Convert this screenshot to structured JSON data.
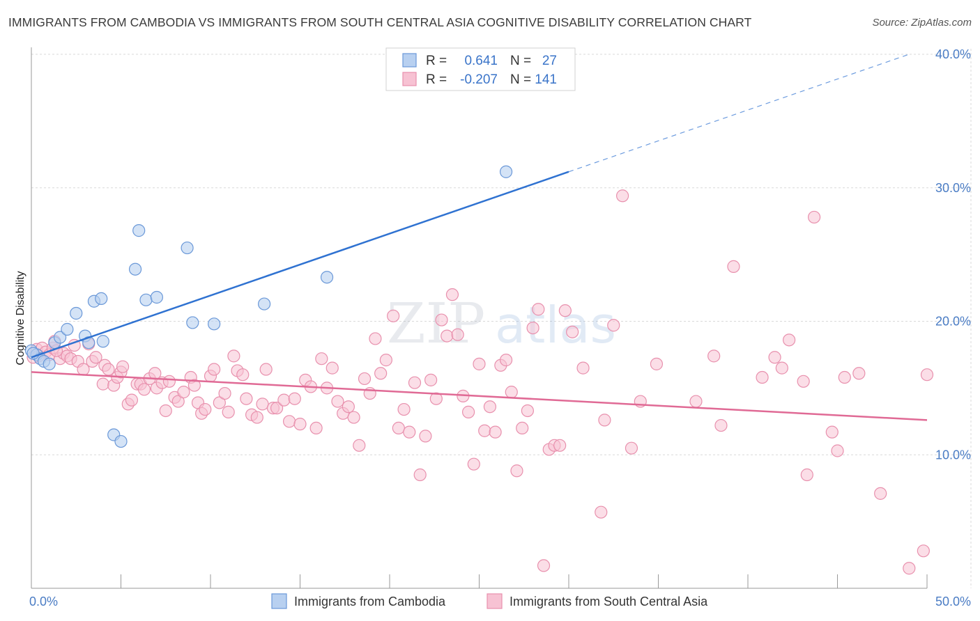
{
  "title": "IMMIGRANTS FROM CAMBODIA VS IMMIGRANTS FROM SOUTH CENTRAL ASIA COGNITIVE DISABILITY CORRELATION CHART",
  "source": "Source: ZipAtlas.com",
  "watermark": {
    "zip": "ZIP",
    "atlas": "atlas"
  },
  "colors": {
    "cambodia_fill": "#b8d0f0",
    "cambodia_stroke": "#6a98d8",
    "cambodia_line": "#2f72d1",
    "sca_fill": "#f7c2d3",
    "sca_stroke": "#e890ad",
    "sca_line": "#e06a95",
    "grid": "#d9d9d9",
    "axis_label": "#4a7cc4"
  },
  "stats_legend": {
    "rows": [
      {
        "r_label": "R =",
        "r_value": "0.641",
        "n_label": "N =",
        "n_value": "27"
      },
      {
        "r_label": "R =",
        "r_value": "-0.207",
        "n_label": "N =",
        "n_value": "141"
      }
    ]
  },
  "chart_data": {
    "type": "scatter",
    "ylabel": "Cognitive Disability",
    "xlim": [
      0,
      50
    ],
    "ylim": [
      0,
      40
    ],
    "x_tick_labels": [
      "0.0%",
      "50.0%"
    ],
    "y_ticks": [
      10,
      20,
      30,
      40
    ],
    "y_tick_labels": [
      "10.0%",
      "20.0%",
      "30.0%",
      "40.0%"
    ],
    "grid": true,
    "legend_position": "bottom",
    "series": [
      {
        "name": "Immigrants from Cambodia",
        "points": [
          [
            0.0,
            17.8
          ],
          [
            0.3,
            17.5
          ],
          [
            0.5,
            17.2
          ],
          [
            0.7,
            17.0
          ],
          [
            1.0,
            16.8
          ],
          [
            1.3,
            18.4
          ],
          [
            1.6,
            18.8
          ],
          [
            2.0,
            19.4
          ],
          [
            2.5,
            20.6
          ],
          [
            3.0,
            18.9
          ],
          [
            3.2,
            18.4
          ],
          [
            3.5,
            21.5
          ],
          [
            3.9,
            21.7
          ],
          [
            4.0,
            18.5
          ],
          [
            4.6,
            11.5
          ],
          [
            5.0,
            11.0
          ],
          [
            5.8,
            23.9
          ],
          [
            6.0,
            26.8
          ],
          [
            6.4,
            21.6
          ],
          [
            7.0,
            21.8
          ],
          [
            8.7,
            25.5
          ],
          [
            9.0,
            19.9
          ],
          [
            10.2,
            19.8
          ],
          [
            13.0,
            21.3
          ],
          [
            16.5,
            23.3
          ],
          [
            26.5,
            31.2
          ],
          [
            0.1,
            17.6
          ]
        ],
        "trend_start": [
          0.0,
          17.3
        ],
        "trend_solid_end": [
          30.0,
          31.2
        ],
        "trend_dashed_end": [
          49.0,
          40.0
        ]
      },
      {
        "name": "Immigrants from South Central Asia",
        "points": [
          [
            0.1,
            17.3
          ],
          [
            0.3,
            17.9
          ],
          [
            0.6,
            18.0
          ],
          [
            0.8,
            17.7
          ],
          [
            1.0,
            17.5
          ],
          [
            1.2,
            18.0
          ],
          [
            1.3,
            18.5
          ],
          [
            1.6,
            17.2
          ],
          [
            1.8,
            17.6
          ],
          [
            2.0,
            17.4
          ],
          [
            2.2,
            17.2
          ],
          [
            2.4,
            18.2
          ],
          [
            2.6,
            17.0
          ],
          [
            2.9,
            16.4
          ],
          [
            3.2,
            18.3
          ],
          [
            3.4,
            17.0
          ],
          [
            3.6,
            17.3
          ],
          [
            4.0,
            15.3
          ],
          [
            4.1,
            16.7
          ],
          [
            4.3,
            16.4
          ],
          [
            4.6,
            15.2
          ],
          [
            4.8,
            15.8
          ],
          [
            5.0,
            16.2
          ],
          [
            5.1,
            16.6
          ],
          [
            5.4,
            13.8
          ],
          [
            5.6,
            14.1
          ],
          [
            5.9,
            15.3
          ],
          [
            6.1,
            15.3
          ],
          [
            6.3,
            14.9
          ],
          [
            6.6,
            15.7
          ],
          [
            6.9,
            16.1
          ],
          [
            7.0,
            15.0
          ],
          [
            7.3,
            15.4
          ],
          [
            7.5,
            13.3
          ],
          [
            7.7,
            15.5
          ],
          [
            8.0,
            14.3
          ],
          [
            8.2,
            14.0
          ],
          [
            8.5,
            14.7
          ],
          [
            8.9,
            15.8
          ],
          [
            9.1,
            15.2
          ],
          [
            9.3,
            13.9
          ],
          [
            9.5,
            13.1
          ],
          [
            9.7,
            13.4
          ],
          [
            10.0,
            15.9
          ],
          [
            10.2,
            16.4
          ],
          [
            10.5,
            13.9
          ],
          [
            10.8,
            14.6
          ],
          [
            11.0,
            13.2
          ],
          [
            11.3,
            17.4
          ],
          [
            11.5,
            16.3
          ],
          [
            11.8,
            16.0
          ],
          [
            12.0,
            14.2
          ],
          [
            12.3,
            13.0
          ],
          [
            12.6,
            12.8
          ],
          [
            12.9,
            13.8
          ],
          [
            13.1,
            16.4
          ],
          [
            13.5,
            13.5
          ],
          [
            13.7,
            13.5
          ],
          [
            14.1,
            14.1
          ],
          [
            14.4,
            12.5
          ],
          [
            14.7,
            14.2
          ],
          [
            15.0,
            12.3
          ],
          [
            15.3,
            15.6
          ],
          [
            15.6,
            15.1
          ],
          [
            15.9,
            12.0
          ],
          [
            16.2,
            17.2
          ],
          [
            16.5,
            15.0
          ],
          [
            16.8,
            16.5
          ],
          [
            17.1,
            14.0
          ],
          [
            17.4,
            13.1
          ],
          [
            17.7,
            13.6
          ],
          [
            18.0,
            12.8
          ],
          [
            18.3,
            10.7
          ],
          [
            18.6,
            15.7
          ],
          [
            18.9,
            14.6
          ],
          [
            19.2,
            18.7
          ],
          [
            19.5,
            16.1
          ],
          [
            19.8,
            17.1
          ],
          [
            20.2,
            20.4
          ],
          [
            20.5,
            12.0
          ],
          [
            20.8,
            13.4
          ],
          [
            21.1,
            11.7
          ],
          [
            21.4,
            15.4
          ],
          [
            21.7,
            8.5
          ],
          [
            22.0,
            11.4
          ],
          [
            22.3,
            15.6
          ],
          [
            22.6,
            14.2
          ],
          [
            22.9,
            20.1
          ],
          [
            23.2,
            18.9
          ],
          [
            23.5,
            22.0
          ],
          [
            23.8,
            19.0
          ],
          [
            24.1,
            14.4
          ],
          [
            24.4,
            13.2
          ],
          [
            24.7,
            9.3
          ],
          [
            25.0,
            16.8
          ],
          [
            25.3,
            11.8
          ],
          [
            25.6,
            13.6
          ],
          [
            25.9,
            11.7
          ],
          [
            26.2,
            16.7
          ],
          [
            26.5,
            17.1
          ],
          [
            26.8,
            14.7
          ],
          [
            27.1,
            8.8
          ],
          [
            27.4,
            12.0
          ],
          [
            27.7,
            13.3
          ],
          [
            28.0,
            19.5
          ],
          [
            28.3,
            20.9
          ],
          [
            28.6,
            1.7
          ],
          [
            28.9,
            10.4
          ],
          [
            29.2,
            10.7
          ],
          [
            29.5,
            10.7
          ],
          [
            29.8,
            20.8
          ],
          [
            30.2,
            19.2
          ],
          [
            30.8,
            16.5
          ],
          [
            31.8,
            5.7
          ],
          [
            32.0,
            12.6
          ],
          [
            32.5,
            19.7
          ],
          [
            33.0,
            29.4
          ],
          [
            33.5,
            10.5
          ],
          [
            34.0,
            14.0
          ],
          [
            34.9,
            16.8
          ],
          [
            37.1,
            14.0
          ],
          [
            38.1,
            17.4
          ],
          [
            38.5,
            12.2
          ],
          [
            39.2,
            24.1
          ],
          [
            40.8,
            15.8
          ],
          [
            41.5,
            17.3
          ],
          [
            41.9,
            16.5
          ],
          [
            42.3,
            18.6
          ],
          [
            43.1,
            15.5
          ],
          [
            43.3,
            8.5
          ],
          [
            43.7,
            27.8
          ],
          [
            44.7,
            11.7
          ],
          [
            45.0,
            10.3
          ],
          [
            45.4,
            15.8
          ],
          [
            46.2,
            16.1
          ],
          [
            47.4,
            7.1
          ],
          [
            49.0,
            1.5
          ],
          [
            49.8,
            2.8
          ],
          [
            50.0,
            16.0
          ],
          [
            1.4,
            17.8
          ],
          [
            0.4,
            17.4
          ]
        ],
        "trend_start": [
          0.0,
          16.2
        ],
        "trend_end": [
          50.0,
          12.6
        ]
      }
    ]
  },
  "bottom_legend": [
    {
      "label": "Immigrants from Cambodia"
    },
    {
      "label": "Immigrants from South Central Asia"
    }
  ]
}
